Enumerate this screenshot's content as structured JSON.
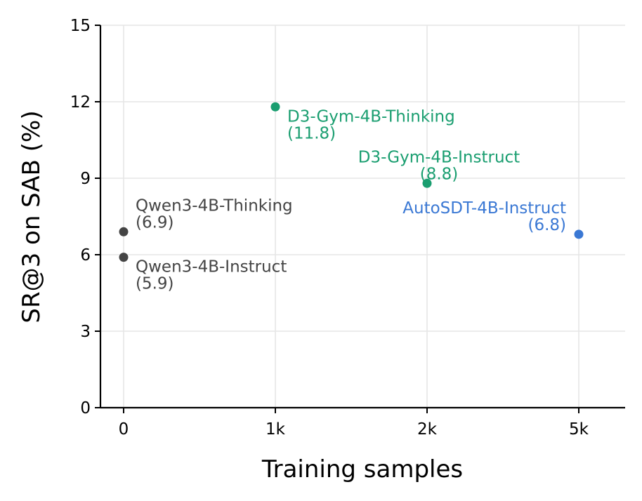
{
  "chart_data": {
    "type": "scatter",
    "title": "",
    "xlabel": "Training samples",
    "ylabel": "SR@3 on SAB (%)",
    "x_scale": "categorical",
    "x_categories": [
      "0",
      "1k",
      "2k",
      "5k"
    ],
    "ylim": [
      0,
      15
    ],
    "yticks": [
      0,
      3,
      6,
      9,
      12,
      15
    ],
    "grid": true,
    "colors": {
      "qwen": "#444444",
      "d3gym": "#1a9e70",
      "autosdt": "#3a78d4"
    },
    "points": [
      {
        "x": "0",
        "y": 6.9,
        "label": "Qwen3-4B-Thinking",
        "value_label": "(6.9)",
        "color": "#444444",
        "anchor": "start",
        "label_pos": "above"
      },
      {
        "x": "0",
        "y": 5.9,
        "label": "Qwen3-4B-Instruct",
        "value_label": "(5.9)",
        "color": "#444444",
        "anchor": "start",
        "label_pos": "below"
      },
      {
        "x": "1k",
        "y": 11.8,
        "label": "D3-Gym-4B-Thinking",
        "value_label": "(11.8)",
        "color": "#1a9e70",
        "anchor": "start",
        "label_pos": "below"
      },
      {
        "x": "2k",
        "y": 8.8,
        "label": "D3-Gym-4B-Instruct",
        "value_label": "(8.8)",
        "color": "#1a9e70",
        "anchor": "middle",
        "label_pos": "above"
      },
      {
        "x": "5k",
        "y": 6.8,
        "label": "AutoSDT-4B-Instruct",
        "value_label": "(6.8)",
        "color": "#3a78d4",
        "anchor": "end",
        "label_pos": "above"
      }
    ]
  }
}
